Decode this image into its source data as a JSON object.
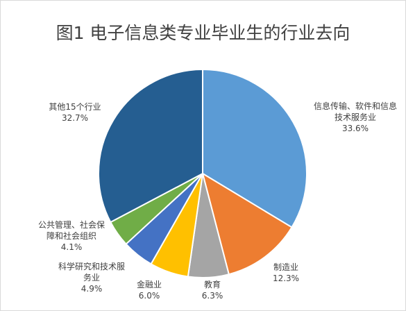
{
  "chart_data": {
    "type": "pie",
    "title": "图1 电子信息类专业毕业生的行业去向",
    "slices": [
      {
        "label_lines": [
          "信息传输、软件和信息",
          "技术服务业"
        ],
        "value": 33.6,
        "value_text": "33.6%",
        "color": "#5b9bd5"
      },
      {
        "label_lines": [
          "制造业"
        ],
        "value": 12.3,
        "value_text": "12.3%",
        "color": "#ed7d31"
      },
      {
        "label_lines": [
          "教育"
        ],
        "value": 6.3,
        "value_text": "6.3%",
        "color": "#a5a5a5"
      },
      {
        "label_lines": [
          "金融业"
        ],
        "value": 6.0,
        "value_text": "6.0%",
        "color": "#ffc000"
      },
      {
        "label_lines": [
          "科学研究和技术服",
          "务业"
        ],
        "value": 4.9,
        "value_text": "4.9%",
        "color": "#4472c4"
      },
      {
        "label_lines": [
          "公共管理、社会保",
          "障和社会组织"
        ],
        "value": 4.1,
        "value_text": "4.1%",
        "color": "#70ad47"
      },
      {
        "label_lines": [
          "其他15个行业"
        ],
        "value": 32.7,
        "value_text": "32.7%",
        "color": "#255e91"
      }
    ]
  }
}
